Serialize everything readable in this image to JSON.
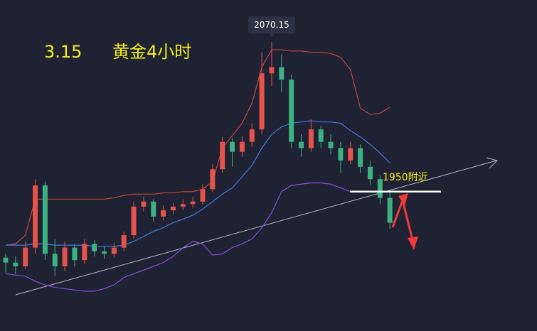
{
  "chart_data": {
    "type": "candlestick",
    "subtitle": "3.15",
    "title": "黄金4小时",
    "peak_label": 2070.15,
    "annotation": {
      "text": "1950附近",
      "value": 1950
    },
    "up_color": "#e5534b",
    "down_color": "#3bb27f",
    "ylim": [
      1838,
      2104
    ],
    "open": [
      1897,
      1893,
      1890,
      1905,
      1955,
      1900,
      1890,
      1905,
      1895,
      1908,
      1902,
      1900,
      1905,
      1915,
      1938,
      1942,
      1930,
      1935,
      1938,
      1940,
      1942,
      1952,
      1968,
      1990,
      1982,
      1990,
      2000,
      2045,
      2050,
      2040,
      1990,
      1985,
      2000,
      1990,
      1985,
      1975,
      1985,
      1970,
      1960,
      1945
    ],
    "high": [
      1900,
      1898,
      1910,
      1960,
      1958,
      1912,
      1910,
      1908,
      1912,
      1911,
      1906,
      1909,
      1918,
      1942,
      1946,
      1944,
      1939,
      1941,
      1944,
      1946,
      1956,
      1972,
      1994,
      1993,
      1995,
      2005,
      2062,
      2070.15,
      2060,
      2044,
      1996,
      2008,
      2003,
      1996,
      1990,
      1990,
      1988,
      1975,
      1963,
      1950
    ],
    "low": [
      1885,
      1884,
      1888,
      1900,
      1895,
      1882,
      1886,
      1890,
      1892,
      1898,
      1896,
      1897,
      1902,
      1912,
      1934,
      1926,
      1927,
      1932,
      1935,
      1937,
      1940,
      1950,
      1965,
      1970,
      1978,
      1986,
      1996,
      2035,
      2030,
      1985,
      1978,
      1982,
      1985,
      1980,
      1965,
      1972,
      1965,
      1955,
      1940,
      1920
    ],
    "close": [
      1893,
      1890,
      1905,
      1955,
      1900,
      1890,
      1905,
      1895,
      1908,
      1902,
      1900,
      1905,
      1915,
      1938,
      1942,
      1930,
      1935,
      1938,
      1940,
      1942,
      1952,
      1968,
      1990,
      1982,
      1990,
      2000,
      2045,
      2050,
      2040,
      1990,
      1985,
      2000,
      1990,
      1985,
      1975,
      1985,
      1970,
      1960,
      1945,
      1925
    ],
    "bands": [
      {
        "color": "#c4473f",
        "values": [
          1907,
          1908,
          1915,
          1944,
          1944,
          1944,
          1944,
          1944,
          1944,
          1944,
          1944,
          1945,
          1947,
          1948,
          1948,
          1948,
          1949,
          1949,
          1950,
          1950,
          1952,
          1958,
          1985,
          1995,
          2005,
          2021,
          2050,
          2064,
          2064,
          2063,
          2063,
          2062,
          2062,
          2061,
          2058,
          2048,
          2017,
          2012,
          2013,
          2018
        ]
      },
      {
        "color": "#3d7ddd",
        "values": [
          1907,
          1907,
          1907,
          1908,
          1908,
          1907,
          1907,
          1907,
          1907,
          1906,
          1906,
          1906,
          1907,
          1910,
          1914,
          1918,
          1921,
          1925,
          1928,
          1931,
          1936,
          1942,
          1948,
          1953,
          1962,
          1971,
          1985,
          1996,
          2002,
          2005,
          2006,
          2007,
          2006,
          2006,
          2005,
          1999,
          1994,
          1988,
          1981,
          1973
        ]
      },
      {
        "color": "#8a4fd8",
        "values": [
          1884,
          1883,
          1882,
          1878,
          1875,
          1873,
          1872,
          1871,
          1870,
          1870,
          1872,
          1875,
          1881,
          1884,
          1887,
          1890,
          1893,
          1898,
          1905,
          1910,
          1908,
          1899,
          1900,
          1905,
          1908,
          1912,
          1921,
          1933,
          1950,
          1955,
          1956,
          1957,
          1957,
          1956,
          1953,
          1950,
          1950,
          1950,
          1950,
          1950
        ]
      }
    ]
  }
}
